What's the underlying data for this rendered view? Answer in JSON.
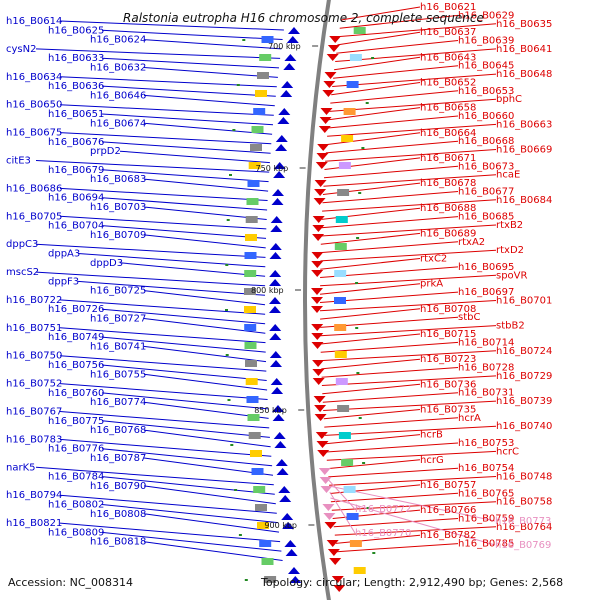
{
  "title": "Ralstonia eutropha H16 chromosome 2, complete sequence",
  "footer": {
    "accession": "Accession: NC_008314",
    "summary": "Topology: circular; Length: 2,912,490 bp; Genes: 2,568"
  },
  "ticks": [
    "700 kbp",
    "750 kbp",
    "800 kbp",
    "850 kbp",
    "900 kbp"
  ],
  "colors": {
    "forward": "#0000cc",
    "reverse": "#dd0000",
    "rna": "#e890c0",
    "backbone": "#808080"
  },
  "left_labels": [
    "h16_B0614",
    "h16_B0625",
    "h16_B0624",
    "cysN2",
    "h16_B0633",
    "h16_B0632",
    "h16_B0634",
    "h16_B0636",
    "h16_B0646",
    "h16_B0650",
    "h16_B0651",
    "h16_B0674",
    "h16_B0675",
    "h16_B0676",
    "prpD2",
    "citE3",
    "h16_B0679",
    "h16_B0683",
    "h16_B0686",
    "h16_B0694",
    "h16_B0703",
    "h16_B0705",
    "h16_B0704",
    "h16_B0709",
    "dppC3",
    "dppA3",
    "dppD3",
    "mscS2",
    "dppF3",
    "h16_B0725",
    "h16_B0722",
    "h16_B0726",
    "h16_B0727",
    "h16_B0751",
    "h16_B0749",
    "h16_B0741",
    "h16_B0750",
    "h16_B0756",
    "h16_B0755",
    "h16_B0752",
    "h16_B0760",
    "h16_B0774",
    "h16_B0767",
    "h16_B0775",
    "h16_B0768",
    "h16_B0783",
    "h16_B0776",
    "h16_B0787",
    "narK5",
    "h16_B0784",
    "h16_B0790",
    "h16_B0794",
    "h16_B0802",
    "h16_B0808",
    "h16_B0821",
    "h16_B0809",
    "h16_B0818"
  ],
  "right_labels": [
    "h16_B0621",
    "h16_B0629",
    "h16_B0635",
    "h16_B0637",
    "h16_B0639",
    "h16_B0641",
    "h16_B0643",
    "h16_B0645",
    "h16_B0648",
    "h16_B0652",
    "h16_B0653",
    "bphC",
    "h16_B0658",
    "h16_B0660",
    "h16_B0663",
    "h16_B0664",
    "h16_B0668",
    "h16_B0669",
    "h16_B0671",
    "h16_B0673",
    "hcaE",
    "h16_B0678",
    "h16_B0677",
    "h16_B0684",
    "h16_B0688",
    "h16_B0685",
    "rtxB2",
    "h16_B0689",
    "rtxA2",
    "rtxD2",
    "rtxC2",
    "h16_B0695",
    "spoVR",
    "prkA",
    "h16_B0697",
    "h16_B0701",
    "h16_B0708",
    "stbC",
    "stbB2",
    "h16_B0715",
    "h16_B0714",
    "h16_B0724",
    "h16_B0723",
    "h16_B0728",
    "h16_B0729",
    "h16_B0736",
    "h16_B0731",
    "h16_B0739",
    "h16_B0735",
    "hcrA",
    "h16_B0740",
    "hcrB",
    "h16_B0753",
    "hcrC",
    "hcrG",
    "h16_B0754",
    "h16_B0748",
    "h16_B0757",
    "h16_B0765",
    "h16_B0758",
    "h16_B0766",
    "h16_B0759",
    "h16_B0764",
    "h16_B0782",
    "h16_B0785"
  ],
  "rna_labels": [
    "h16_B0772",
    "h16_B0773",
    "h16_B0770",
    "h16_B0769"
  ]
}
